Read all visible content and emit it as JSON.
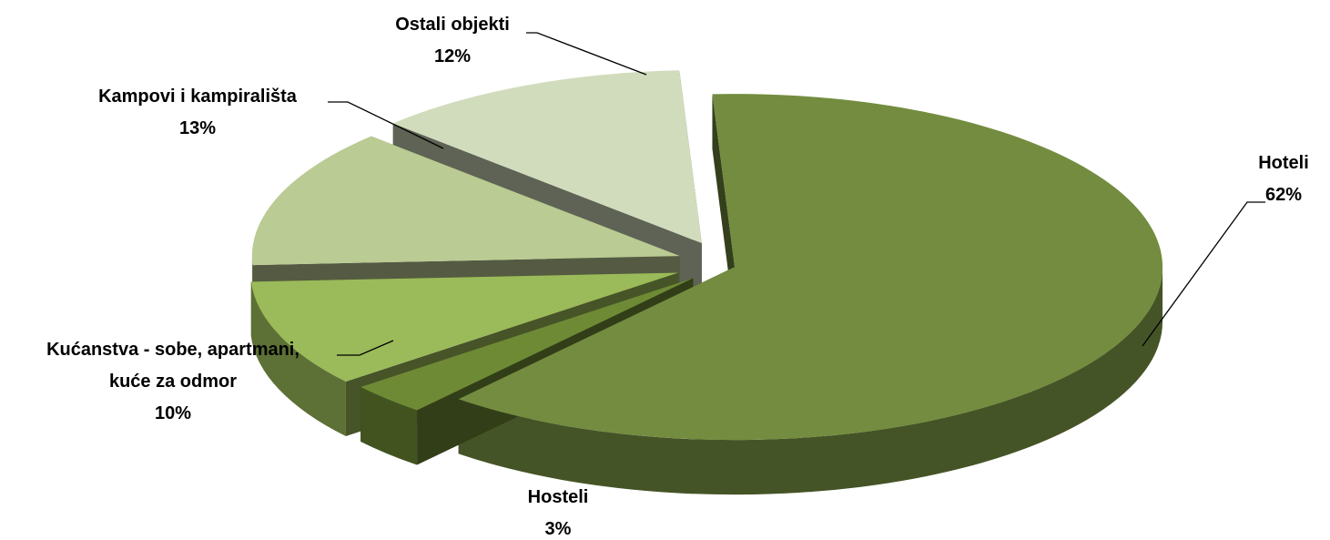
{
  "chart_data": {
    "type": "pie",
    "style": "3d-exploded",
    "title": "",
    "legend": "none",
    "slices": [
      {
        "label": "Hoteli",
        "value": 62,
        "value_label": "62%",
        "color": "#738c3f"
      },
      {
        "label": "Hosteli",
        "value": 3,
        "value_label": "3%",
        "color": "#6e8a35"
      },
      {
        "label": "Kućanstva - sobe, apartmani, kuće za odmor",
        "value": 10,
        "value_label": "10%",
        "color": "#9bba59"
      },
      {
        "label": "Kampovi i kampirališta",
        "value": 13,
        "value_label": "13%",
        "color": "#bacb93"
      },
      {
        "label": "Ostali objekti",
        "value": 12,
        "value_label": "12%",
        "color": "#d1dcbd"
      }
    ],
    "label_lines": [
      [
        "Hoteli",
        "62%"
      ],
      [
        "Hosteli",
        "3%"
      ],
      [
        "Kućanstva - sobe, apartmani,",
        "kuće za odmor",
        "10%"
      ],
      [
        "Kampovi i kampirališta",
        "13%"
      ],
      [
        "Ostali objekti",
        "12%"
      ]
    ]
  }
}
